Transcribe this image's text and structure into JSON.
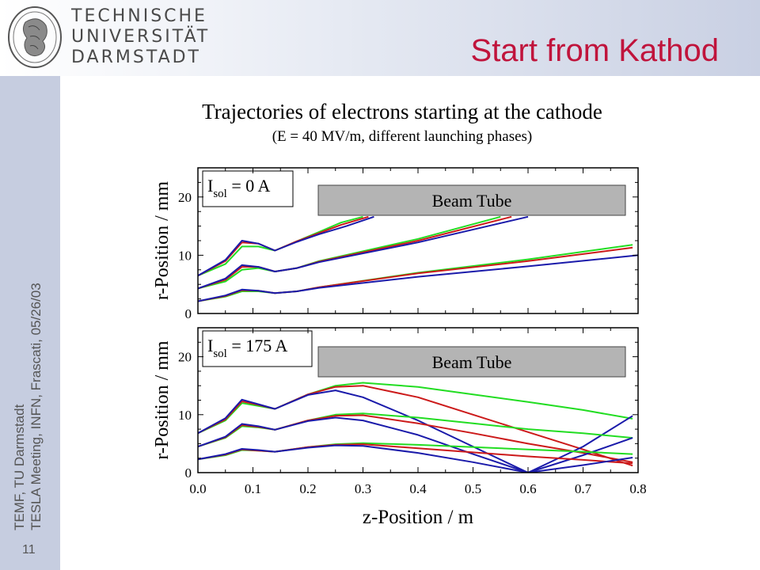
{
  "header": {
    "university": [
      "TECHNISCHE",
      "UNIVERSITÄT",
      "DARMSTADT"
    ],
    "slide_title": "Start from Kathod"
  },
  "footer": {
    "line1": "TEMF, TU Darmstadt",
    "line2": "TESLA Meeting, INFN, Frascati, 05/26/03",
    "page_number": "11"
  },
  "colors": {
    "title_red": "#c0143c",
    "band_blue": "#c6cde0",
    "series_red": "#cc1a1a",
    "series_green": "#22dd22",
    "series_blue": "#1a1aaa",
    "beam_tube_fill": "#b4b4b4"
  },
  "chart_data": [
    {
      "type": "line",
      "title": "Trajectories of electrons starting at the cathode",
      "subtitle": "(E = 40 MV/m, different launching phases)",
      "annotation": "I_sol = 0 A",
      "annotation_main": "I",
      "annotation_sub": "sol",
      "annotation_rest": " = 0 A",
      "region_label": "Beam Tube",
      "beam_tube_r": 16.6,
      "xlabel": "",
      "ylabel": "r-Position / mm",
      "xlim": [
        0,
        0.8
      ],
      "ylim": [
        0,
        25
      ],
      "yticks": [
        0,
        10,
        20
      ],
      "series": [
        {
          "color": "green",
          "x": [
            0,
            0.05,
            0.08,
            0.11,
            0.14,
            0.18,
            0.22,
            0.26,
            0.3
          ],
          "y": [
            6.5,
            8.5,
            11.5,
            11.5,
            10.8,
            12.4,
            14.0,
            15.6,
            16.6
          ]
        },
        {
          "color": "red",
          "x": [
            0,
            0.05,
            0.08,
            0.11,
            0.14,
            0.18,
            0.22,
            0.26,
            0.31
          ],
          "y": [
            6.5,
            9.0,
            12.2,
            12.0,
            10.8,
            12.4,
            13.8,
            15.2,
            16.6
          ]
        },
        {
          "color": "blue",
          "x": [
            0,
            0.05,
            0.08,
            0.11,
            0.14,
            0.18,
            0.22,
            0.27,
            0.32
          ],
          "y": [
            6.5,
            9.2,
            12.5,
            12.0,
            10.8,
            12.3,
            13.6,
            15.0,
            16.6
          ]
        },
        {
          "color": "green",
          "x": [
            0,
            0.05,
            0.08,
            0.11,
            0.14,
            0.18,
            0.22,
            0.4,
            0.55
          ],
          "y": [
            4.3,
            5.5,
            7.5,
            7.8,
            7.2,
            7.8,
            9.0,
            12.8,
            16.6
          ]
        },
        {
          "color": "red",
          "x": [
            0,
            0.05,
            0.08,
            0.11,
            0.14,
            0.18,
            0.22,
            0.4,
            0.57
          ],
          "y": [
            4.3,
            5.8,
            8.0,
            8.0,
            7.2,
            7.8,
            8.9,
            12.5,
            16.6
          ]
        },
        {
          "color": "blue",
          "x": [
            0,
            0.05,
            0.08,
            0.11,
            0.14,
            0.18,
            0.22,
            0.4,
            0.6
          ],
          "y": [
            4.3,
            6.0,
            8.3,
            8.0,
            7.2,
            7.8,
            8.8,
            12.2,
            16.6
          ]
        },
        {
          "color": "green",
          "x": [
            0,
            0.05,
            0.08,
            0.11,
            0.14,
            0.18,
            0.22,
            0.4,
            0.6,
            0.79
          ],
          "y": [
            2.1,
            2.9,
            3.8,
            3.8,
            3.5,
            3.8,
            4.5,
            7.0,
            9.3,
            11.8
          ]
        },
        {
          "color": "red",
          "x": [
            0,
            0.05,
            0.08,
            0.11,
            0.14,
            0.18,
            0.22,
            0.4,
            0.6,
            0.79
          ],
          "y": [
            2.1,
            3.0,
            4.0,
            3.9,
            3.5,
            3.8,
            4.5,
            6.9,
            9.0,
            11.3
          ]
        },
        {
          "color": "blue",
          "x": [
            0,
            0.05,
            0.08,
            0.11,
            0.14,
            0.18,
            0.22,
            0.4,
            0.6,
            0.8
          ],
          "y": [
            2.1,
            3.1,
            4.1,
            3.9,
            3.5,
            3.8,
            4.4,
            6.3,
            8.1,
            10.0
          ]
        }
      ]
    },
    {
      "type": "line",
      "annotation": "I_sol = 175 A",
      "annotation_main": "I",
      "annotation_sub": "sol",
      "annotation_rest": " = 175 A",
      "region_label": "Beam Tube",
      "xlabel": "z-Position / m",
      "ylabel": "r-Position / mm",
      "xlim": [
        0,
        0.8
      ],
      "ylim": [
        0,
        25
      ],
      "xticks": [
        0.0,
        0.1,
        0.2,
        0.3,
        0.4,
        0.5,
        0.6,
        0.7,
        0.8
      ],
      "xtick_labels": [
        "0.0",
        "0.1",
        "0.2",
        "0.3",
        "0.4",
        "0.5",
        "0.6",
        "0.7",
        "0.8"
      ],
      "yticks": [
        0,
        10,
        20
      ],
      "series": [
        {
          "color": "green",
          "x": [
            0,
            0.05,
            0.08,
            0.11,
            0.14,
            0.2,
            0.25,
            0.3,
            0.4,
            0.5,
            0.6,
            0.7,
            0.79
          ],
          "y": [
            6.8,
            9.0,
            12.0,
            11.5,
            11.0,
            13.5,
            15.0,
            15.5,
            14.8,
            13.5,
            12.2,
            10.8,
            9.3
          ]
        },
        {
          "color": "red",
          "x": [
            0,
            0.05,
            0.08,
            0.11,
            0.14,
            0.2,
            0.25,
            0.3,
            0.4,
            0.5,
            0.6,
            0.7,
            0.79
          ],
          "y": [
            6.8,
            9.2,
            12.3,
            11.7,
            11.0,
            13.5,
            14.8,
            15.0,
            13.0,
            10.0,
            7.0,
            4.0,
            1.2
          ]
        },
        {
          "color": "blue",
          "x": [
            0,
            0.05,
            0.08,
            0.11,
            0.14,
            0.2,
            0.25,
            0.3,
            0.4,
            0.5,
            0.6,
            0.7,
            0.79
          ],
          "y": [
            6.8,
            9.4,
            12.6,
            11.8,
            11.0,
            13.4,
            14.2,
            13.0,
            9.0,
            4.5,
            0,
            4.5,
            9.8
          ]
        },
        {
          "color": "green",
          "x": [
            0,
            0.05,
            0.08,
            0.11,
            0.14,
            0.2,
            0.25,
            0.3,
            0.4,
            0.5,
            0.6,
            0.7,
            0.79
          ],
          "y": [
            4.5,
            6.0,
            8.0,
            7.8,
            7.4,
            9.0,
            10.0,
            10.2,
            9.5,
            8.5,
            7.5,
            6.8,
            6.0
          ]
        },
        {
          "color": "red",
          "x": [
            0,
            0.05,
            0.08,
            0.11,
            0.14,
            0.2,
            0.25,
            0.3,
            0.4,
            0.5,
            0.6,
            0.7,
            0.79
          ],
          "y": [
            4.5,
            6.1,
            8.2,
            7.9,
            7.4,
            9.0,
            9.8,
            9.9,
            8.5,
            6.8,
            5.0,
            3.4,
            1.8
          ]
        },
        {
          "color": "blue",
          "x": [
            0,
            0.05,
            0.08,
            0.11,
            0.14,
            0.2,
            0.25,
            0.3,
            0.4,
            0.5,
            0.6,
            0.7,
            0.79
          ],
          "y": [
            4.5,
            6.2,
            8.4,
            8.0,
            7.4,
            8.9,
            9.5,
            9.0,
            6.5,
            3.2,
            0,
            3.0,
            6.0
          ]
        },
        {
          "color": "green",
          "x": [
            0,
            0.05,
            0.08,
            0.11,
            0.14,
            0.2,
            0.25,
            0.3,
            0.4,
            0.5,
            0.6,
            0.7,
            0.79
          ],
          "y": [
            2.3,
            3.0,
            3.9,
            3.8,
            3.6,
            4.4,
            4.9,
            5.1,
            4.8,
            4.4,
            4.0,
            3.6,
            3.2
          ]
        },
        {
          "color": "red",
          "x": [
            0,
            0.05,
            0.08,
            0.11,
            0.14,
            0.2,
            0.25,
            0.3,
            0.4,
            0.5,
            0.6,
            0.7,
            0.79
          ],
          "y": [
            2.3,
            3.1,
            4.0,
            3.8,
            3.6,
            4.4,
            4.8,
            4.9,
            4.2,
            3.5,
            2.8,
            2.2,
            1.6
          ]
        },
        {
          "color": "blue",
          "x": [
            0,
            0.05,
            0.08,
            0.11,
            0.14,
            0.2,
            0.25,
            0.3,
            0.4,
            0.5,
            0.6,
            0.7,
            0.79
          ],
          "y": [
            2.3,
            3.2,
            4.1,
            3.9,
            3.6,
            4.3,
            4.7,
            4.6,
            3.4,
            1.8,
            0,
            1.3,
            2.6
          ]
        }
      ]
    }
  ]
}
